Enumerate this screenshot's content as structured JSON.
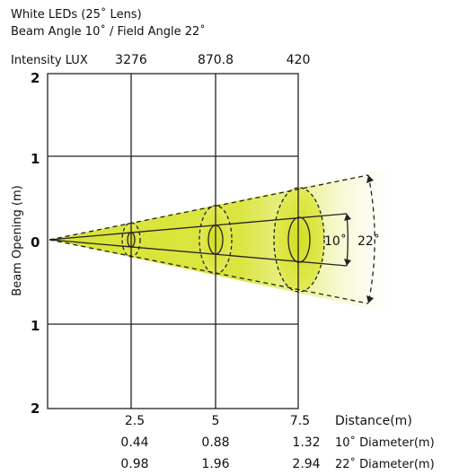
{
  "header": {
    "title_line1": "White LEDs (25˚ Lens)",
    "title_line2": "Beam Angle 10˚ / Field Angle 22˚"
  },
  "intensity": {
    "label": "Intensity LUX",
    "values": [
      "3276",
      "870.8",
      "420"
    ]
  },
  "y_axis": {
    "label": "Beam Opening (m)",
    "ticks": [
      "2",
      "1",
      "0",
      "1",
      "2"
    ]
  },
  "x_axis": {
    "ticks": [
      "2.5",
      "5",
      "7.5"
    ],
    "label": "Distance(m)"
  },
  "diameter_rows": [
    {
      "label": "10˚ Diameter(m)",
      "values": [
        "0.44",
        "0.88",
        "1.32"
      ]
    },
    {
      "label": "22˚ Diameter(m)",
      "values": [
        "0.98",
        "1.96",
        "2.94"
      ]
    }
  ],
  "angles": {
    "beam": "10˚",
    "field": "22˚"
  },
  "colors": {
    "beam_fill": "#d9e436",
    "grid": "#222222",
    "background": "#ffffff"
  }
}
